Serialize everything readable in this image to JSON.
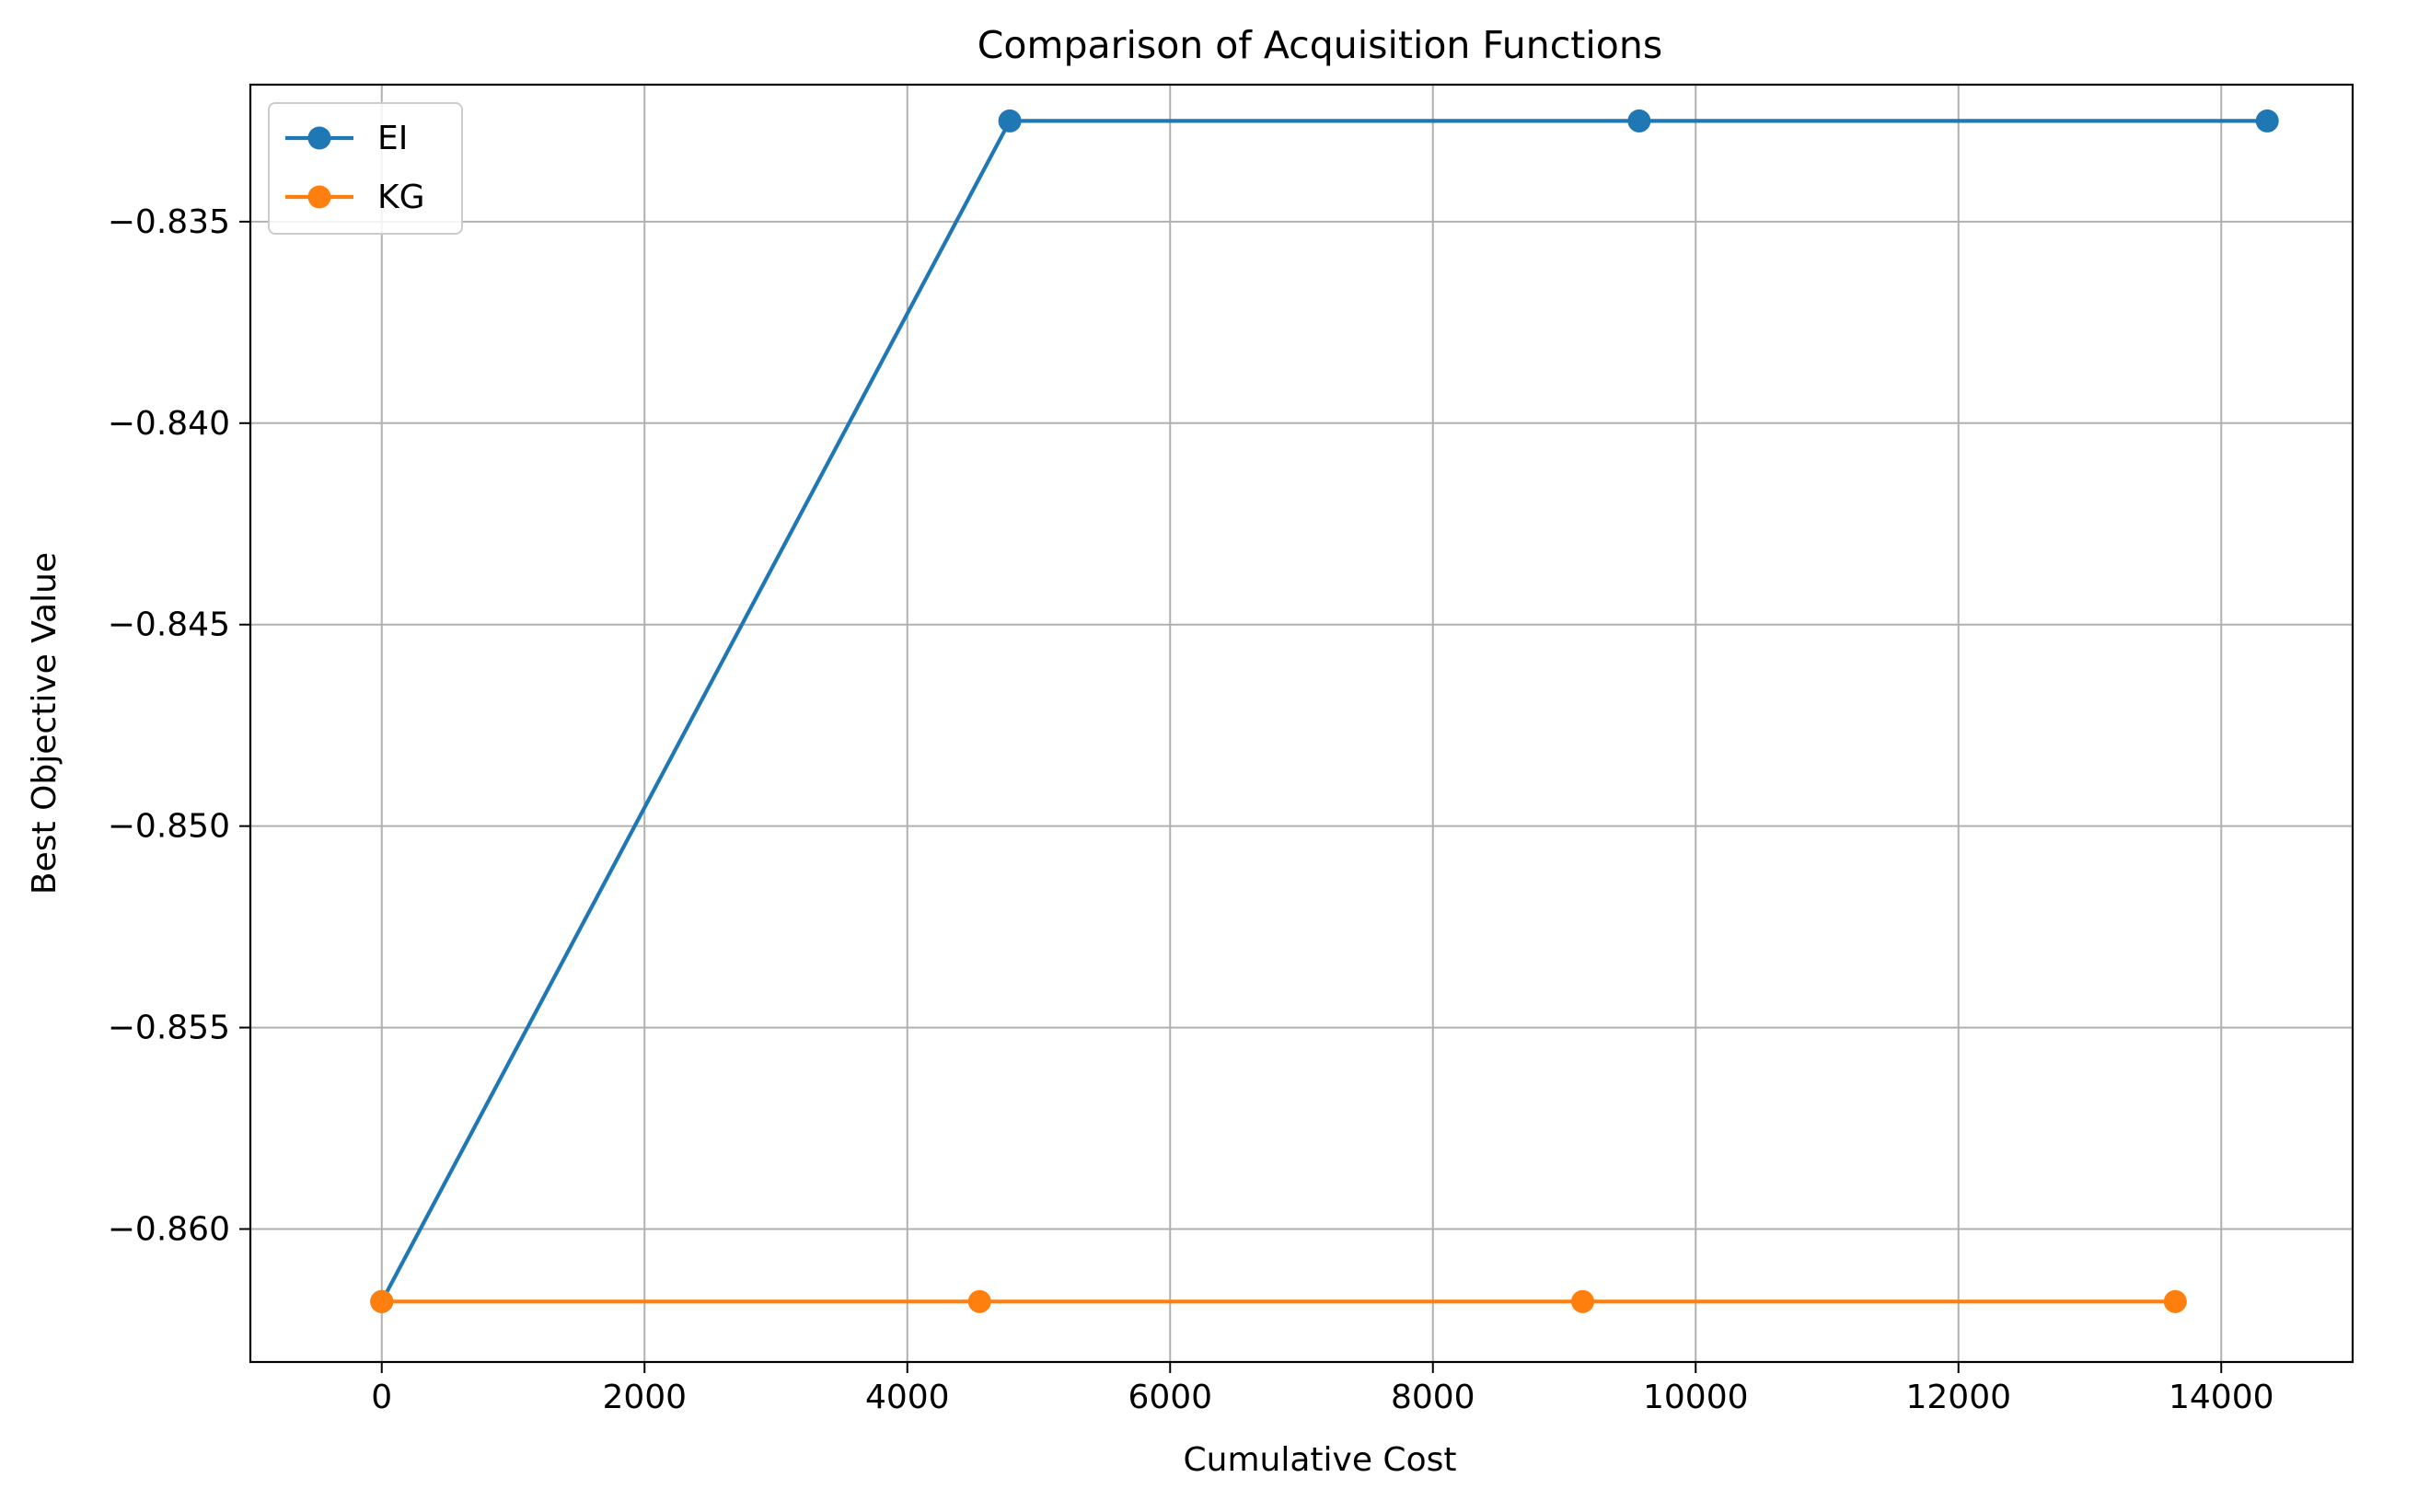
{
  "chart_data": {
    "type": "line",
    "title": "Comparison of Acquisition Functions",
    "xlabel": "Cumulative Cost",
    "ylabel": "Best Objective Value",
    "xlim": [
      -1000,
      15000
    ],
    "ylim": [
      -0.8633,
      -0.8316
    ],
    "xticks": [
      0,
      2000,
      4000,
      6000,
      8000,
      10000,
      12000,
      14000
    ],
    "xtick_labels": [
      "0",
      "2000",
      "4000",
      "6000",
      "8000",
      "10000",
      "12000",
      "14000"
    ],
    "yticks": [
      -0.86,
      -0.855,
      -0.85,
      -0.845,
      -0.84,
      -0.835
    ],
    "ytick_labels": [
      "−0.860",
      "−0.855",
      "−0.850",
      "−0.845",
      "−0.840",
      "−0.835"
    ],
    "grid": true,
    "legend": "upper-left",
    "series": [
      {
        "name": "EI",
        "color": "#1f77b4",
        "marker": "circle",
        "x": [
          0,
          4780,
          9570,
          14350
        ],
        "y": [
          -0.8618,
          -0.8325,
          -0.8325,
          -0.8325
        ]
      },
      {
        "name": "KG",
        "color": "#ff7f0e",
        "marker": "circle",
        "x": [
          0,
          4550,
          9140,
          13650
        ],
        "y": [
          -0.8618,
          -0.8618,
          -0.8618,
          -0.8618
        ]
      }
    ]
  }
}
